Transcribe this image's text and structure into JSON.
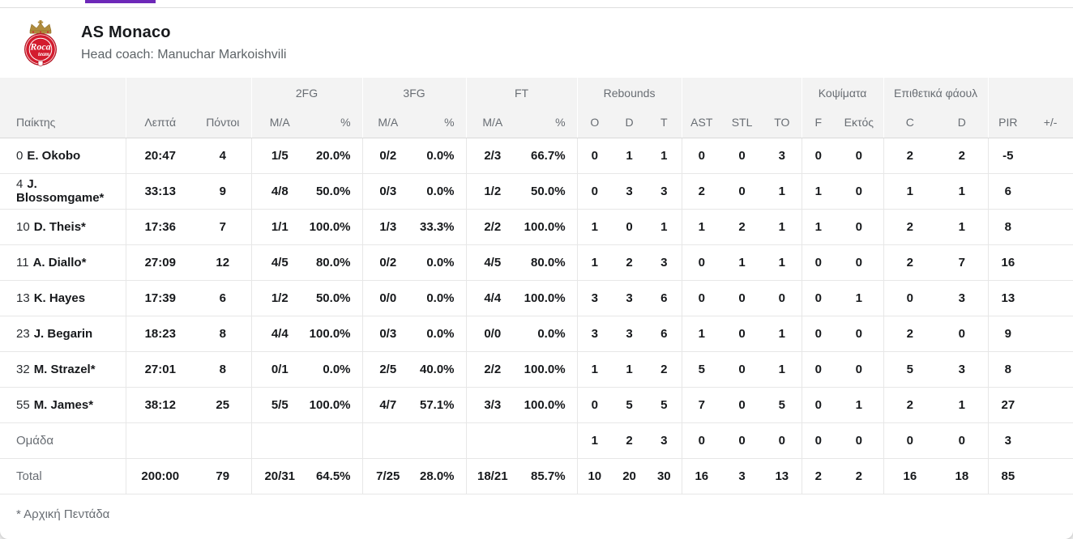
{
  "page": {
    "accent_color": "#6d28b8",
    "card_background": "#ffffff"
  },
  "team": {
    "name": "AS Monaco",
    "coach_line": "Head coach: Manuchar Markoishvili",
    "logo": "as-monaco-roca-team-crest",
    "logo_colors": {
      "red": "#d31c2e",
      "dark_red": "#b01422",
      "gold": "#b08c3d",
      "white": "#ffffff"
    },
    "logo_script": "Roca",
    "logo_script2": "team"
  },
  "table": {
    "group_headers": [
      "2FG",
      "3FG",
      "FT",
      "Rebounds",
      "Κοψίματα",
      "Επιθετικά φάουλ"
    ],
    "columns": [
      "Παίκτης",
      "Λεπτά",
      "Πόντοι",
      "M/A",
      "%",
      "M/A",
      "%",
      "M/A",
      "%",
      "O",
      "D",
      "T",
      "AST",
      "STL",
      "TO",
      "F",
      "Εκτός",
      "C",
      "D",
      "PIR",
      "+/-"
    ],
    "rows": [
      {
        "type": "player",
        "number": "0",
        "name": "E. Okobo",
        "stats": [
          "20:47",
          "4",
          "1/5",
          "20.0%",
          "0/2",
          "0.0%",
          "2/3",
          "66.7%",
          "0",
          "1",
          "1",
          "0",
          "0",
          "3",
          "0",
          "0",
          "2",
          "2",
          "-5",
          ""
        ]
      },
      {
        "type": "player",
        "number": "4",
        "name": "J. Blossomgame*",
        "stats": [
          "33:13",
          "9",
          "4/8",
          "50.0%",
          "0/3",
          "0.0%",
          "1/2",
          "50.0%",
          "0",
          "3",
          "3",
          "2",
          "0",
          "1",
          "1",
          "0",
          "1",
          "1",
          "6",
          ""
        ]
      },
      {
        "type": "player",
        "number": "10",
        "name": "D. Theis*",
        "stats": [
          "17:36",
          "7",
          "1/1",
          "100.0%",
          "1/3",
          "33.3%",
          "2/2",
          "100.0%",
          "1",
          "0",
          "1",
          "1",
          "2",
          "1",
          "1",
          "0",
          "2",
          "1",
          "8",
          ""
        ]
      },
      {
        "type": "player",
        "number": "11",
        "name": "A. Diallo*",
        "stats": [
          "27:09",
          "12",
          "4/5",
          "80.0%",
          "0/2",
          "0.0%",
          "4/5",
          "80.0%",
          "1",
          "2",
          "3",
          "0",
          "1",
          "1",
          "0",
          "0",
          "2",
          "7",
          "16",
          ""
        ]
      },
      {
        "type": "player",
        "number": "13",
        "name": "K. Hayes",
        "stats": [
          "17:39",
          "6",
          "1/2",
          "50.0%",
          "0/0",
          "0.0%",
          "4/4",
          "100.0%",
          "3",
          "3",
          "6",
          "0",
          "0",
          "0",
          "0",
          "1",
          "0",
          "3",
          "13",
          ""
        ]
      },
      {
        "type": "player",
        "number": "23",
        "name": "J. Begarin",
        "stats": [
          "18:23",
          "8",
          "4/4",
          "100.0%",
          "0/3",
          "0.0%",
          "0/0",
          "0.0%",
          "3",
          "3",
          "6",
          "1",
          "0",
          "1",
          "0",
          "0",
          "2",
          "0",
          "9",
          ""
        ]
      },
      {
        "type": "player",
        "number": "32",
        "name": "M. Strazel*",
        "stats": [
          "27:01",
          "8",
          "0/1",
          "0.0%",
          "2/5",
          "40.0%",
          "2/2",
          "100.0%",
          "1",
          "1",
          "2",
          "5",
          "0",
          "1",
          "0",
          "0",
          "5",
          "3",
          "8",
          ""
        ]
      },
      {
        "type": "player",
        "number": "55",
        "name": "M. James*",
        "stats": [
          "38:12",
          "25",
          "5/5",
          "100.0%",
          "4/7",
          "57.1%",
          "3/3",
          "100.0%",
          "0",
          "5",
          "5",
          "7",
          "0",
          "5",
          "0",
          "1",
          "2",
          "1",
          "27",
          ""
        ]
      },
      {
        "type": "team",
        "number": "",
        "name": "Ομάδα",
        "stats": [
          "",
          "",
          "",
          "",
          "",
          "",
          "",
          "",
          "1",
          "2",
          "3",
          "0",
          "0",
          "0",
          "0",
          "0",
          "0",
          "0",
          "3",
          ""
        ]
      },
      {
        "type": "total",
        "number": "",
        "name": "Total",
        "stats": [
          "200:00",
          "79",
          "20/31",
          "64.5%",
          "7/25",
          "28.0%",
          "18/21",
          "85.7%",
          "10",
          "20",
          "30",
          "16",
          "3",
          "13",
          "2",
          "2",
          "16",
          "18",
          "85",
          ""
        ]
      }
    ],
    "footnote": "* Αρχική Πεντάδα"
  }
}
